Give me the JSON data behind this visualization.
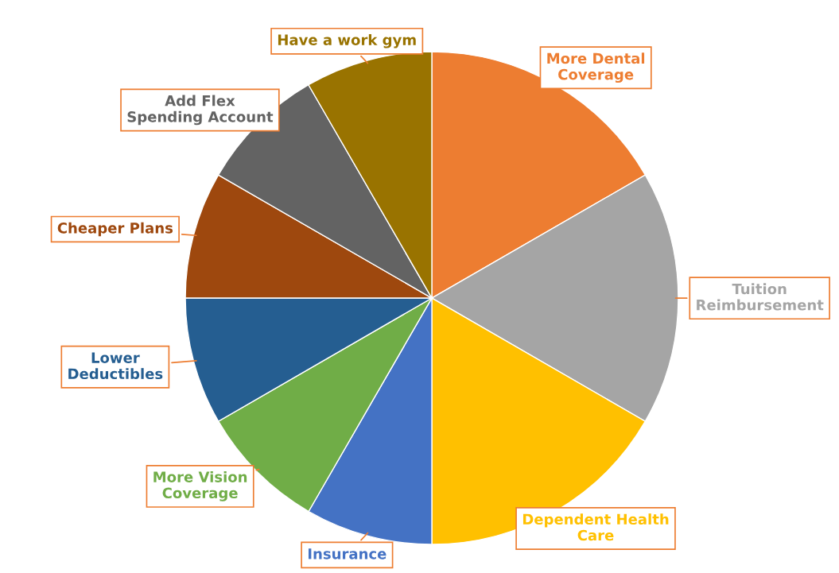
{
  "chart_data": {
    "type": "pie",
    "categories": [
      "More Dental Coverage",
      "Tuition Reimbursement",
      "Dependent Health Care",
      "Insurance",
      "More Vision Coverage",
      "Lower Deductibles",
      "Cheaper Plans",
      "Add Flex Spending Account",
      "Have a work gym"
    ],
    "values": [
      16.67,
      16.67,
      16.66,
      8.33,
      8.33,
      8.34,
      8.33,
      8.33,
      8.34
    ],
    "colors": [
      "#ed7d31",
      "#a5a5a5",
      "#ffc000",
      "#4472c4",
      "#70ad47",
      "#255e91",
      "#9e480e",
      "#636363",
      "#997300"
    ]
  }
}
